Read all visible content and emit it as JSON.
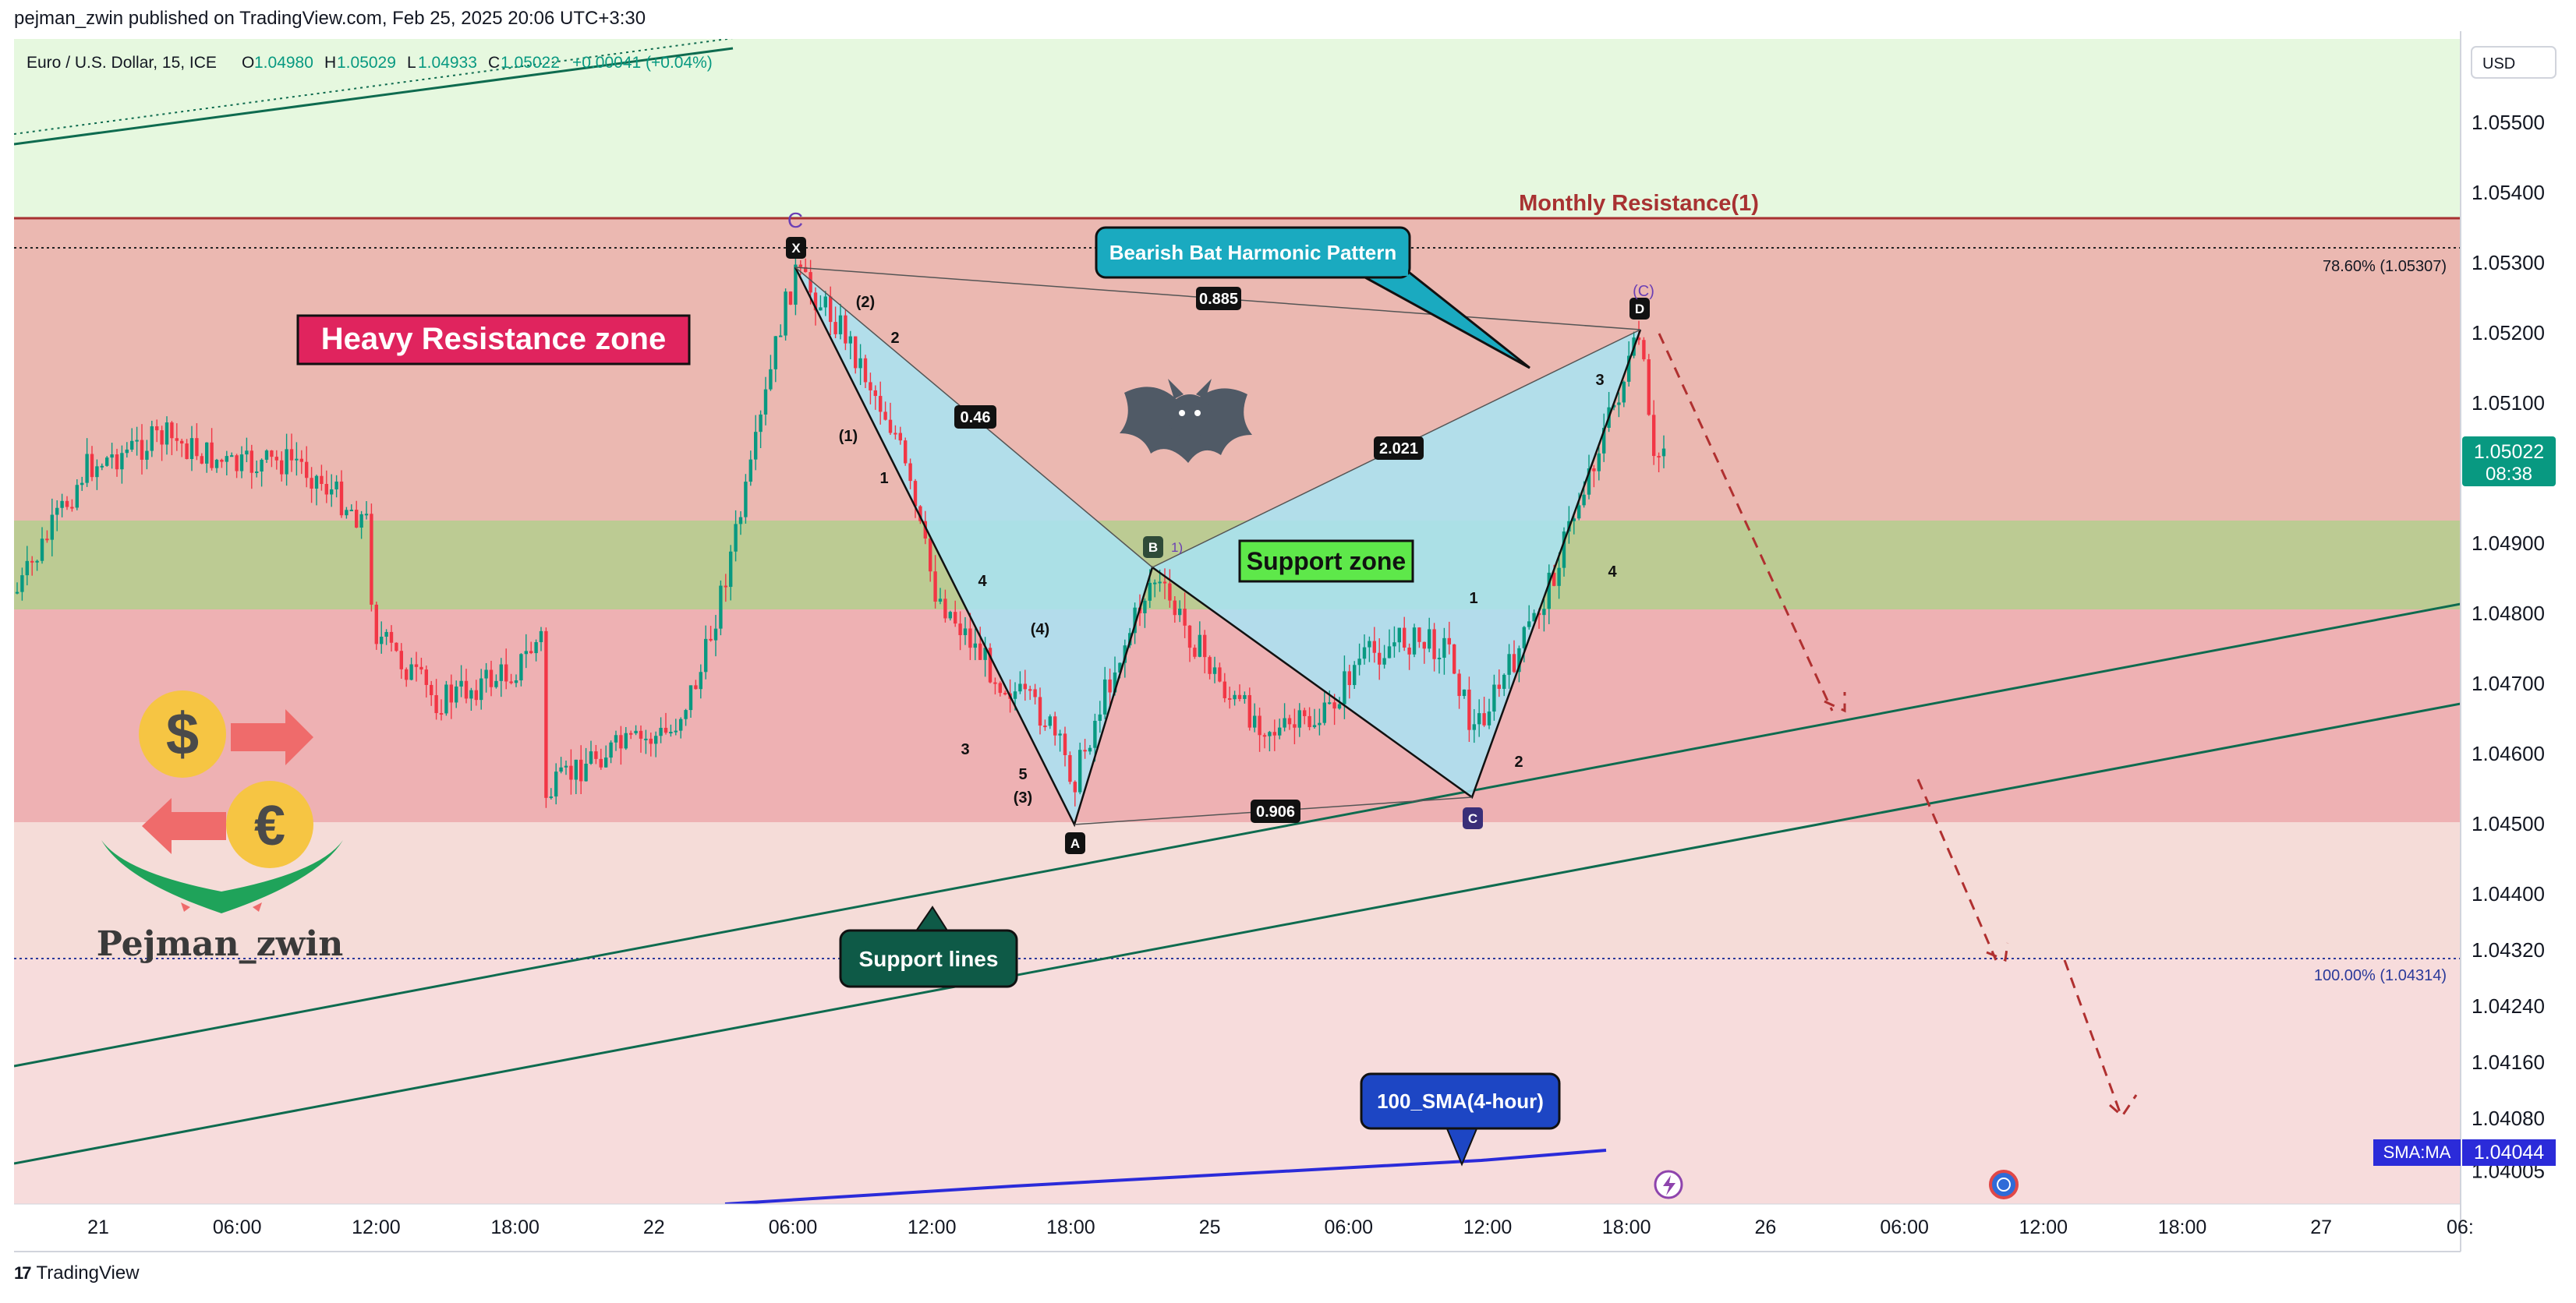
{
  "header": {
    "published_text": "pejman_zwin published on TradingView.com, Feb 25, 2025 20:06 UTC+3:30"
  },
  "legend": {
    "symbol": "Euro / U.S. Dollar, 15, ICE",
    "o_label": "O",
    "o_value": "1.04980",
    "h_label": "H",
    "h_value": "1.05029",
    "l_label": "L",
    "l_value": "1.04933",
    "c_label": "C",
    "c_value": "1.05022",
    "change": "+0.00041 (+0.04%)"
  },
  "currency": "USD",
  "colors": {
    "up": "#089981",
    "down": "#f23645",
    "resistance_zone": "#e8a6a6",
    "support_zone": "#b7d68c",
    "pattern_fill": "#a8e4f5",
    "sma": "#2b2bd9",
    "accent": "#089981"
  },
  "price_scale": {
    "labels": [
      "1.05500",
      "1.05400",
      "1.05300",
      "1.05200",
      "1.05100",
      "1.04900",
      "1.04800",
      "1.04700",
      "1.04600",
      "1.04500",
      "1.04400",
      "1.04320",
      "1.04240",
      "1.04160",
      "1.04080",
      "1.04005"
    ],
    "current_price": "1.05022",
    "countdown": "08:38",
    "sma_label": "SMA:MA",
    "sma_value": "1.04044"
  },
  "time_axis": {
    "labels": [
      "21",
      "06:00",
      "12:00",
      "18:00",
      "22",
      "06:00",
      "12:00",
      "18:00",
      "25",
      "06:00",
      "12:00",
      "18:00",
      "26",
      "06:00",
      "12:00",
      "18:00",
      "27",
      "06:"
    ]
  },
  "annotations": {
    "heavy_resistance": "Heavy Resistance zone",
    "monthly_resistance": "Monthly Resistance(1)",
    "fib_786": "78.60% (1.05307)",
    "fib_100": "100.00% (1.04314)",
    "bearish_bat": "Bearish Bat Harmonic Pattern",
    "support_zone": "Support zone",
    "support_lines": "Support lines",
    "sma_callout": "100_SMA(4-hour)",
    "watermark": "Pejman_zwin",
    "top_c": "C",
    "d_c": "(C)",
    "b_extra": "1)"
  },
  "pattern": {
    "point_labels": [
      "X",
      "A",
      "B",
      "C",
      "D"
    ],
    "ratios": [
      "0.46",
      "0.885",
      "2.021",
      "0.906"
    ],
    "wave_labels": [
      "(2)",
      "2",
      "(1)",
      "1",
      "4",
      "(4)",
      "3",
      "5",
      "(3)",
      "1",
      "2",
      "3",
      "4"
    ]
  },
  "footer": {
    "logo": "17",
    "brand": "TradingView"
  },
  "chart_data": {
    "type": "candlestick",
    "symbol": "Euro / U.S. Dollar, 15, ICE",
    "ylim": [
      1.0399,
      1.0558
    ],
    "patterns": [
      {
        "name": "Bearish Bat Harmonic Pattern",
        "points": [
          {
            "label": "X",
            "time": "22 06:00",
            "price": 1.0528
          },
          {
            "label": "A",
            "time": "22 18:00",
            "price": 1.045
          },
          {
            "label": "B",
            "time": "24 20:30",
            "price": 1.0486
          },
          {
            "label": "C",
            "time": "25 11:30",
            "price": 1.0454
          },
          {
            "label": "D",
            "time": "25 18:30",
            "price": 1.052
          }
        ],
        "ratios": {
          "XB": 0.46,
          "XD": 0.885,
          "BD": 2.021,
          "AC": 0.906
        }
      }
    ],
    "zones": [
      {
        "name": "Heavy Resistance zone",
        "from": 1.045,
        "to": 1.0535
      },
      {
        "name": "Support zone",
        "from": 1.048,
        "to": 1.0492
      },
      {
        "name": "Monthly Resistance(1)",
        "level": 1.0535
      }
    ],
    "levels": [
      {
        "name": "78.60% (1.05307)",
        "price": 1.05307
      },
      {
        "name": "100.00% (1.04314)",
        "price": 1.04314
      },
      {
        "name": "SMA:MA",
        "price": 1.04044
      }
    ],
    "last": {
      "open": 1.0498,
      "high": 1.05029,
      "low": 1.04933,
      "close": 1.05022
    }
  }
}
